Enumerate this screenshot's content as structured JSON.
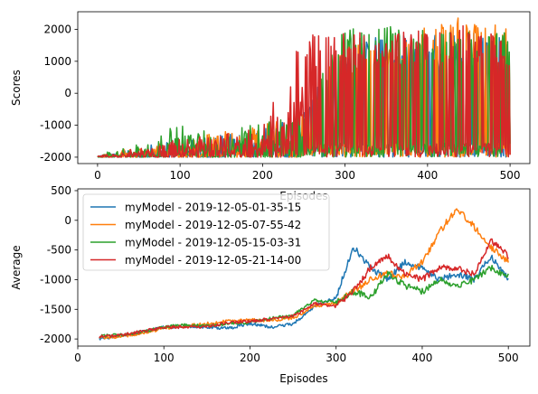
{
  "colors": {
    "series": [
      "#1f77b4",
      "#ff7f0e",
      "#2ca02c",
      "#d62728"
    ]
  },
  "chart_data": [
    {
      "type": "line",
      "xlabel": "Episodes",
      "ylabel": "Scores",
      "xlim": [
        -24,
        524
      ],
      "ylim": [
        -2200,
        2550
      ],
      "xticks": [
        0,
        100,
        200,
        300,
        400,
        500
      ],
      "yticks": [
        -2000,
        -1000,
        0,
        1000,
        2000
      ],
      "grid": false,
      "series": [
        {
          "name": "myModel - 2019-12-05-01-35-15",
          "x": [
            0,
            50,
            100,
            150,
            200,
            250,
            300,
            350,
            400,
            450,
            500
          ],
          "min": [
            -2000,
            -2000,
            -2000,
            -2000,
            -2000,
            -2000,
            -2000,
            -2000,
            -2000,
            -2000,
            -2000
          ],
          "max": [
            -1950,
            -1700,
            -1400,
            -1300,
            -1100,
            -600,
            1900,
            1800,
            1900,
            2000,
            1700
          ]
        },
        {
          "name": "myModel - 2019-12-05-07-55-42",
          "x": [
            0,
            50,
            100,
            150,
            200,
            250,
            300,
            350,
            400,
            450,
            500
          ],
          "min": [
            -2000,
            -2000,
            -2000,
            -2000,
            -2000,
            -2000,
            -2000,
            -2000,
            -2000,
            -2000,
            -2000
          ],
          "max": [
            -1950,
            -1600,
            -1500,
            -1200,
            -1000,
            -500,
            1700,
            1500,
            2100,
            2450,
            2000
          ]
        },
        {
          "name": "myModel - 2019-12-05-15-03-31",
          "x": [
            0,
            50,
            100,
            150,
            200,
            250,
            300,
            350,
            400,
            450,
            500
          ],
          "min": [
            -2000,
            -2000,
            -2000,
            -2000,
            -2000,
            -2000,
            -2000,
            -2000,
            -2000,
            -2000,
            -2000
          ],
          "max": [
            -1900,
            -1600,
            -900,
            -1200,
            -900,
            -500,
            2100,
            2100,
            2100,
            2000,
            1900
          ]
        },
        {
          "name": "myModel - 2019-12-05-21-14-00",
          "x": [
            0,
            50,
            100,
            150,
            200,
            250,
            300,
            350,
            400,
            450,
            500
          ],
          "min": [
            -2000,
            -2000,
            -2000,
            -2000,
            -2000,
            -2000,
            -2000,
            -2000,
            -2000,
            -2000,
            -2000
          ],
          "max": [
            -1950,
            -1700,
            -1400,
            -1300,
            -1000,
            1900,
            2000,
            1900,
            2000,
            2300,
            1500
          ]
        }
      ]
    },
    {
      "type": "line",
      "xlabel": "Episodes",
      "ylabel": "Average",
      "xlim": [
        0,
        525
      ],
      "ylim": [
        -2120,
        530
      ],
      "xticks": [
        0,
        100,
        200,
        300,
        400,
        500
      ],
      "yticks": [
        -2000,
        -1500,
        -1000,
        -500,
        0,
        500
      ],
      "grid": false,
      "legend": "top-left",
      "series": [
        {
          "name": "myModel - 2019-12-05-01-35-15",
          "x": [
            25,
            50,
            75,
            100,
            125,
            150,
            175,
            200,
            225,
            250,
            275,
            300,
            320,
            340,
            360,
            380,
            400,
            420,
            440,
            460,
            480,
            500
          ],
          "y": [
            -1990,
            -1950,
            -1880,
            -1800,
            -1790,
            -1800,
            -1820,
            -1740,
            -1800,
            -1750,
            -1450,
            -1300,
            -450,
            -800,
            -1000,
            -700,
            -800,
            -1000,
            -900,
            -1000,
            -600,
            -1000
          ]
        },
        {
          "name": "myModel - 2019-12-05-07-55-42",
          "x": [
            25,
            50,
            75,
            100,
            125,
            150,
            175,
            200,
            225,
            250,
            275,
            300,
            320,
            340,
            360,
            380,
            400,
            420,
            440,
            460,
            480,
            500
          ],
          "y": [
            -1980,
            -1960,
            -1900,
            -1820,
            -1780,
            -1740,
            -1700,
            -1680,
            -1690,
            -1650,
            -1450,
            -1400,
            -1200,
            -1000,
            -900,
            -950,
            -700,
            -200,
            200,
            -100,
            -450,
            -700
          ]
        },
        {
          "name": "myModel - 2019-12-05-15-03-31",
          "x": [
            25,
            50,
            75,
            100,
            125,
            150,
            175,
            200,
            225,
            250,
            275,
            300,
            320,
            340,
            360,
            380,
            400,
            420,
            440,
            460,
            480,
            500
          ],
          "y": [
            -1950,
            -1930,
            -1880,
            -1800,
            -1760,
            -1780,
            -1740,
            -1720,
            -1650,
            -1600,
            -1350,
            -1380,
            -1200,
            -1300,
            -900,
            -1100,
            -1200,
            -1000,
            -1100,
            -1000,
            -800,
            -950
          ]
        },
        {
          "name": "myModel - 2019-12-05-21-14-00",
          "x": [
            25,
            50,
            75,
            100,
            125,
            150,
            175,
            200,
            225,
            250,
            275,
            300,
            320,
            340,
            360,
            380,
            400,
            420,
            440,
            460,
            480,
            500
          ],
          "y": [
            -1960,
            -1940,
            -1870,
            -1800,
            -1800,
            -1790,
            -1720,
            -1700,
            -1660,
            -1620,
            -1400,
            -1450,
            -1200,
            -800,
            -600,
            -900,
            -1000,
            -800,
            -800,
            -900,
            -350,
            -600
          ]
        }
      ]
    }
  ]
}
